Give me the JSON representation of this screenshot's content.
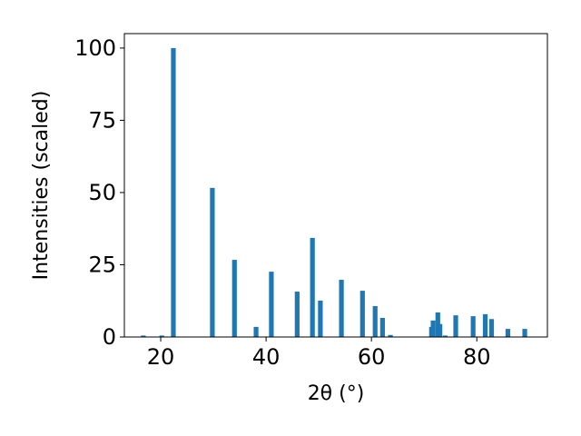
{
  "chart_data": {
    "type": "bar",
    "color": "#1f77b4",
    "xlabel": "2θ (°)",
    "ylabel": "Intensities (scaled)",
    "x": [
      16.7,
      20.2,
      22.4,
      29.8,
      34.0,
      38.1,
      41.0,
      45.9,
      48.8,
      50.3,
      54.3,
      58.3,
      60.7,
      62.1,
      63.6,
      71.4,
      71.7,
      72.6,
      73.0,
      74.0,
      76.0,
      79.3,
      81.6,
      82.8,
      85.9,
      89.1
    ],
    "values": [
      0.5,
      0.5,
      100,
      51.6,
      26.7,
      3.5,
      22.6,
      15.7,
      34.3,
      12.6,
      19.8,
      16.0,
      10.7,
      6.6,
      0.7,
      3.5,
      5.7,
      8.5,
      4.5,
      0.5,
      7.5,
      7.2,
      7.9,
      6.2,
      2.8,
      2.8
    ],
    "xlim": [
      13.1,
      93.4
    ],
    "ylim": [
      0,
      105
    ],
    "xticks": [
      20,
      40,
      60,
      80
    ],
    "yticks": [
      0,
      25,
      50,
      75,
      100
    ]
  }
}
